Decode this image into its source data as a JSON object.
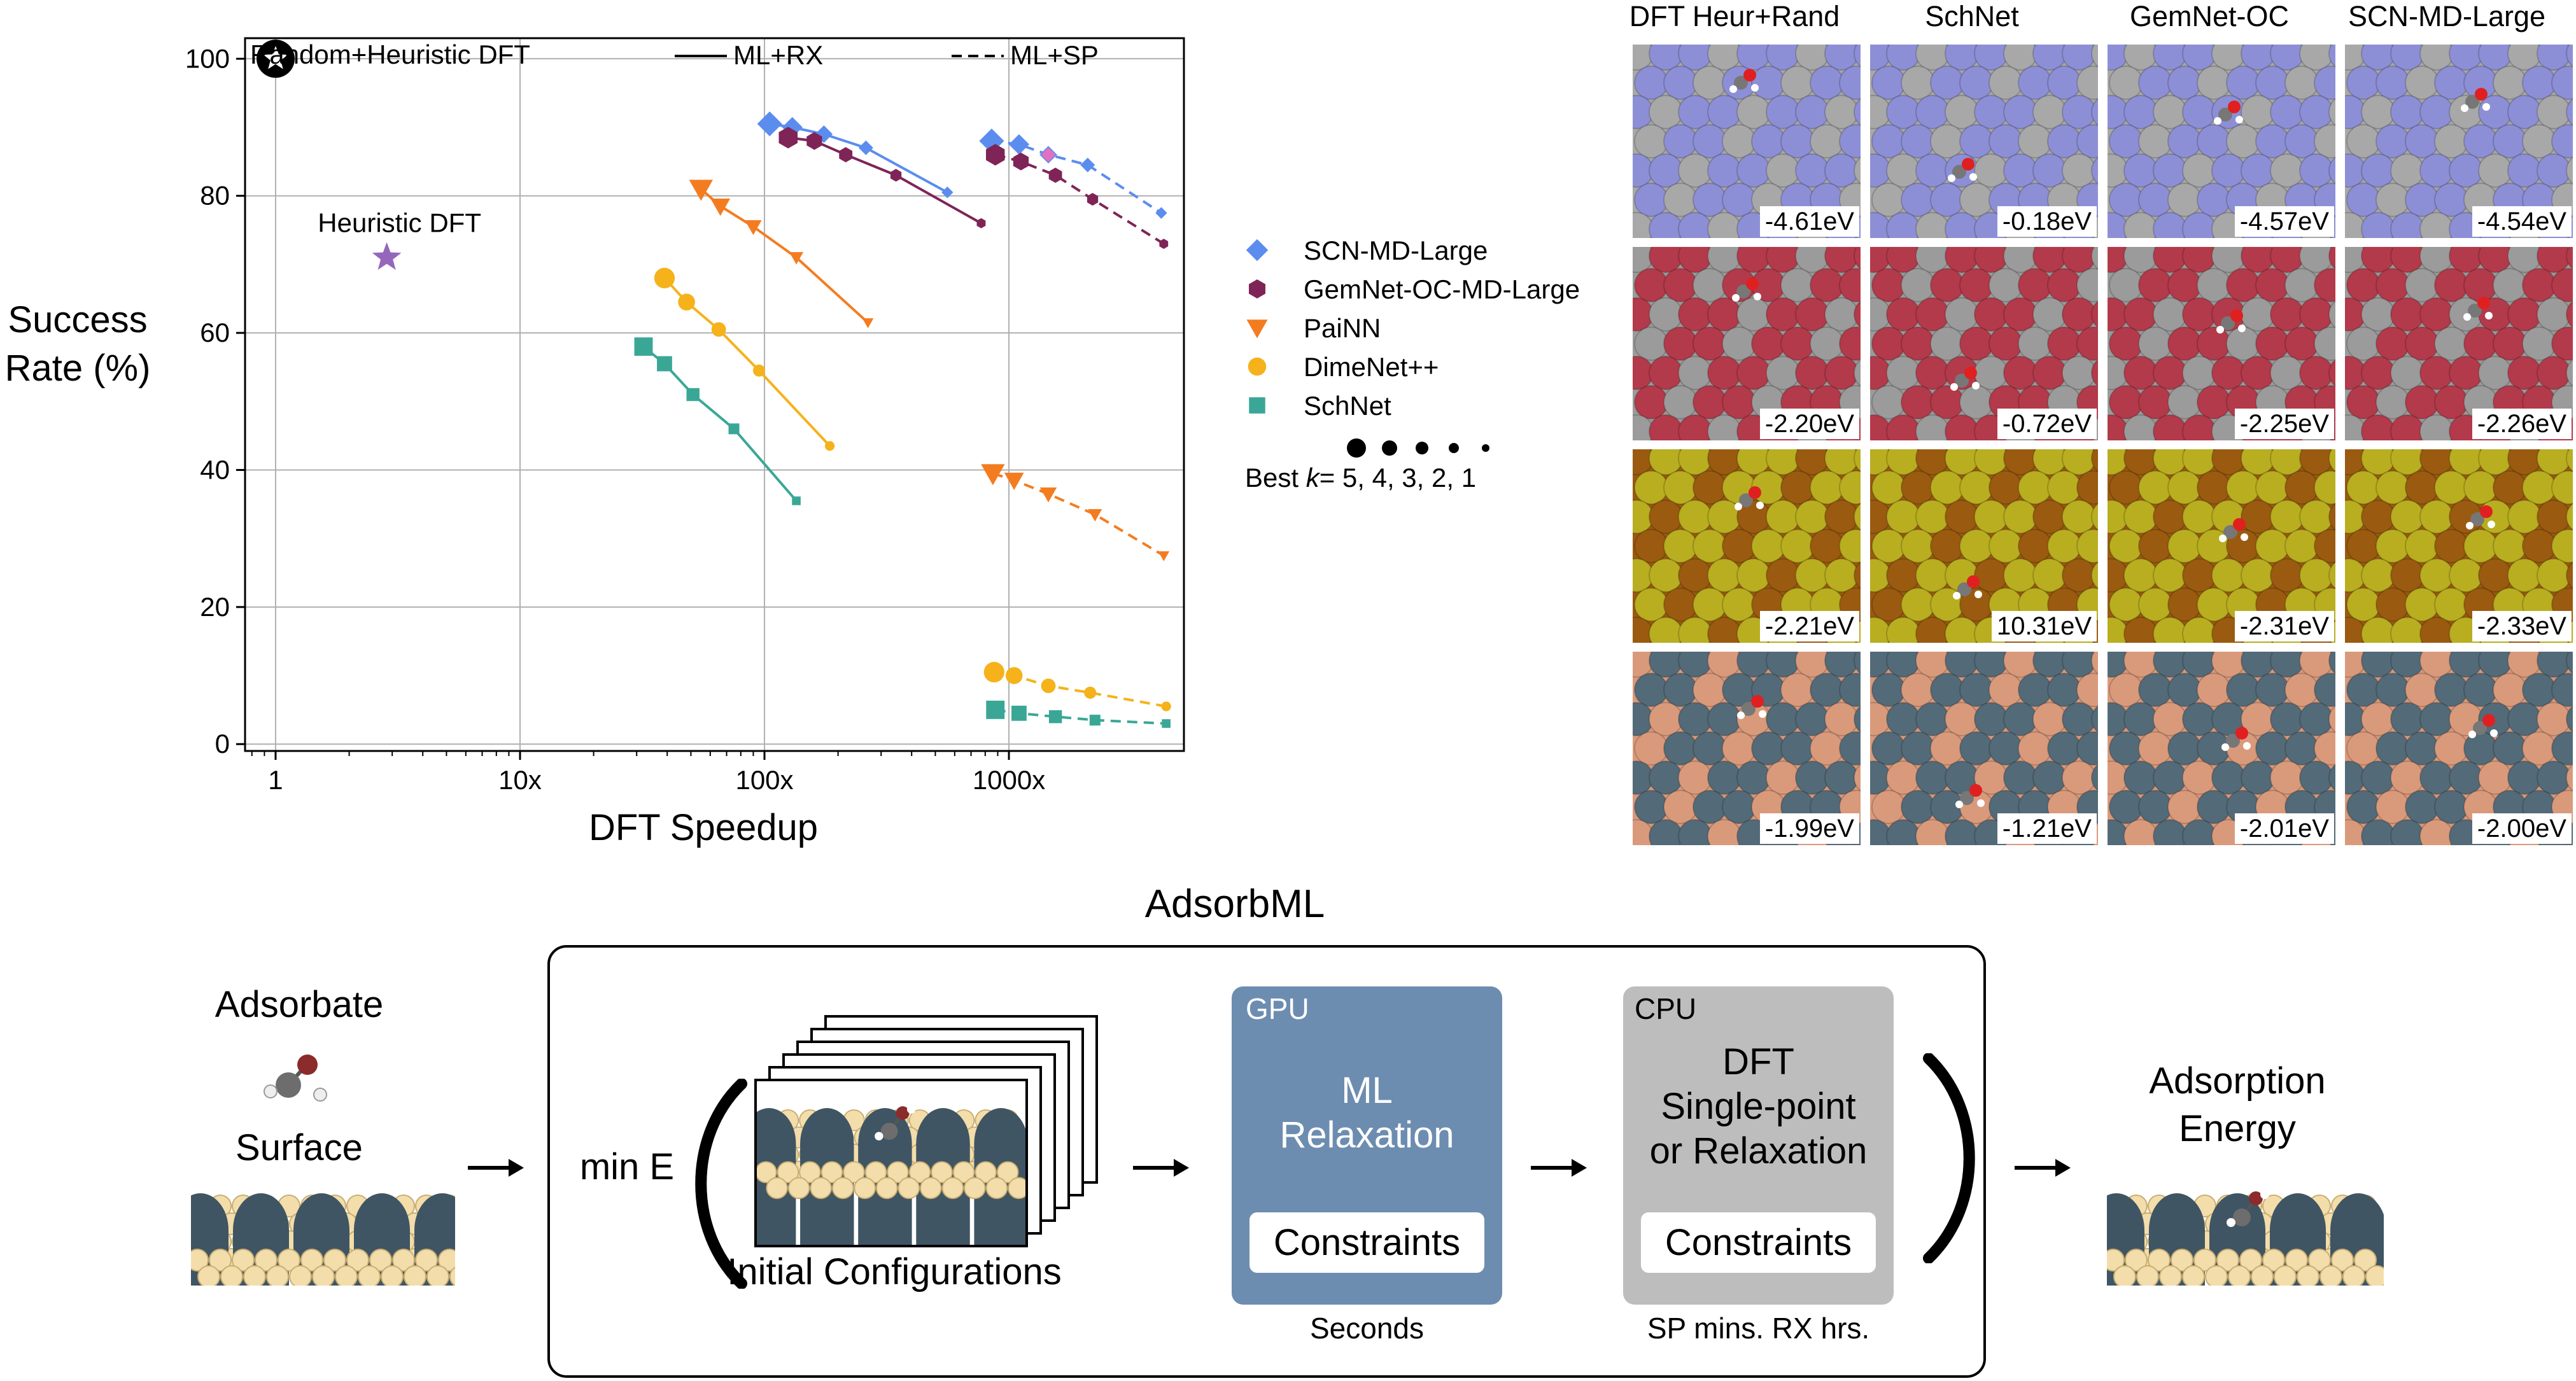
{
  "chart_data": {
    "type": "line",
    "xlabel": "DFT Speedup",
    "ylabel_line1": "Success",
    "ylabel_line2": "Rate (%)",
    "xscale": "log",
    "xlim": [
      0.75,
      5200
    ],
    "ylim": [
      -1,
      103
    ],
    "grid": true,
    "x_ticks": [
      {
        "v": 1,
        "label": "1"
      },
      {
        "v": 10,
        "label": "10x"
      },
      {
        "v": 100,
        "label": "100x"
      },
      {
        "v": 1000,
        "label": "1000x"
      }
    ],
    "y_ticks": [
      0,
      20,
      40,
      60,
      80,
      100
    ],
    "style_legend": [
      {
        "label": "ML+RX",
        "style": "solid"
      },
      {
        "label": "ML+SP",
        "style": "dashed"
      }
    ],
    "size_legend": {
      "prefix": "Best",
      "var": "k",
      "values": "= 5, 4, 3, 2, 1"
    },
    "reference_points": [
      {
        "name": "Random+Heuristic DFT",
        "x": 1,
        "y": 100,
        "marker": "star-circle",
        "color": "#000000"
      },
      {
        "name": "Heuristic DFT",
        "x": 2.85,
        "y": 71,
        "marker": "star",
        "color": "#9467bd"
      }
    ],
    "series": [
      {
        "name": "SCN-MD-Large",
        "color": "#5b8def",
        "marker": "diamond",
        "rx": [
          [
            105,
            90.5
          ],
          [
            130,
            90
          ],
          [
            175,
            89
          ],
          [
            260,
            87
          ],
          [
            560,
            80.5
          ]
        ],
        "sp": [
          [
            850,
            88
          ],
          [
            1100,
            87.5
          ],
          [
            1450,
            86
          ],
          [
            2100,
            84.5
          ],
          [
            4200,
            77.5
          ]
        ]
      },
      {
        "name": "GemNet-OC-MD-Large",
        "color": "#7f2457",
        "marker": "hexagon",
        "rx": [
          [
            125,
            88.5
          ],
          [
            160,
            88
          ],
          [
            215,
            86
          ],
          [
            345,
            83
          ],
          [
            770,
            76
          ]
        ],
        "sp": [
          [
            880,
            86
          ],
          [
            1120,
            85
          ],
          [
            1550,
            83
          ],
          [
            2200,
            79.5
          ],
          [
            4300,
            73
          ]
        ]
      },
      {
        "name": "PaiNN",
        "color": "#f47c20",
        "marker": "triangle-down",
        "rx": [
          [
            55,
            81
          ],
          [
            66,
            78.5
          ],
          [
            90,
            75.5
          ],
          [
            135,
            71
          ],
          [
            265,
            61.5
          ]
        ],
        "sp": [
          [
            860,
            39.5
          ],
          [
            1050,
            38.5
          ],
          [
            1450,
            36.5
          ],
          [
            2250,
            33.5
          ],
          [
            4300,
            27.5
          ]
        ]
      },
      {
        "name": "DimeNet++",
        "color": "#f5b21a",
        "marker": "circle",
        "rx": [
          [
            39,
            68
          ],
          [
            48,
            64.5
          ],
          [
            65,
            60.5
          ],
          [
            95,
            54.5
          ],
          [
            185,
            43.5
          ]
        ],
        "sp": [
          [
            870,
            10.5
          ],
          [
            1050,
            10
          ],
          [
            1450,
            8.5
          ],
          [
            2150,
            7.5
          ],
          [
            4400,
            5.5
          ]
        ]
      },
      {
        "name": "SchNet",
        "color": "#3aa796",
        "marker": "square",
        "rx": [
          [
            32,
            58
          ],
          [
            39,
            55.5
          ],
          [
            51,
            51
          ],
          [
            75,
            46
          ],
          [
            135,
            35.5
          ]
        ],
        "sp": [
          [
            880,
            5
          ],
          [
            1100,
            4.5
          ],
          [
            1550,
            4
          ],
          [
            2250,
            3.5
          ],
          [
            4400,
            3
          ]
        ]
      }
    ]
  },
  "tile_grid": {
    "columns": [
      "DFT Heur+Rand",
      "SchNet",
      "GemNet-OC",
      "SCN-MD-Large"
    ],
    "rows": [
      {
        "surface": "#8d8fd6",
        "substrate": "#a8a8a8",
        "energies": [
          "-4.61eV",
          "-0.18eV",
          "-4.57eV",
          "-4.54eV"
        ]
      },
      {
        "surface": "#b33a4a",
        "substrate": "#9b9b9b",
        "energies": [
          "-2.20eV",
          "-0.72eV",
          "-2.25eV",
          "-2.26eV"
        ]
      },
      {
        "surface": "#b8ae20",
        "substrate": "#9a5a10",
        "energies": [
          "-2.21eV",
          "10.31eV",
          "-2.31eV",
          "-2.33eV"
        ]
      },
      {
        "surface": "#536a78",
        "substrate": "#d99a7c",
        "energies": [
          "-1.99eV",
          "-1.21eV",
          "-2.01eV",
          "-2.00eV"
        ]
      }
    ]
  },
  "workflow": {
    "title": "AdsorbML",
    "adsorbate_label": "Adsorbate",
    "surface_label": "Surface",
    "min_label": "min E",
    "initial_label": "Initial Configurations",
    "gpu": {
      "tag": "GPU",
      "title_line1": "ML",
      "title_line2": "Relaxation",
      "constraints": "Constraints",
      "caption": "Seconds",
      "color": "#6d8db0"
    },
    "cpu": {
      "tag": "CPU",
      "title_line1": "DFT",
      "title_line2": "Single-point",
      "title_line3": "or Relaxation",
      "constraints": "Constraints",
      "caption": "SP mins. RX hrs.",
      "color": "#bdbdbd"
    },
    "output_line1": "Adsorption",
    "output_line2": "Energy"
  }
}
